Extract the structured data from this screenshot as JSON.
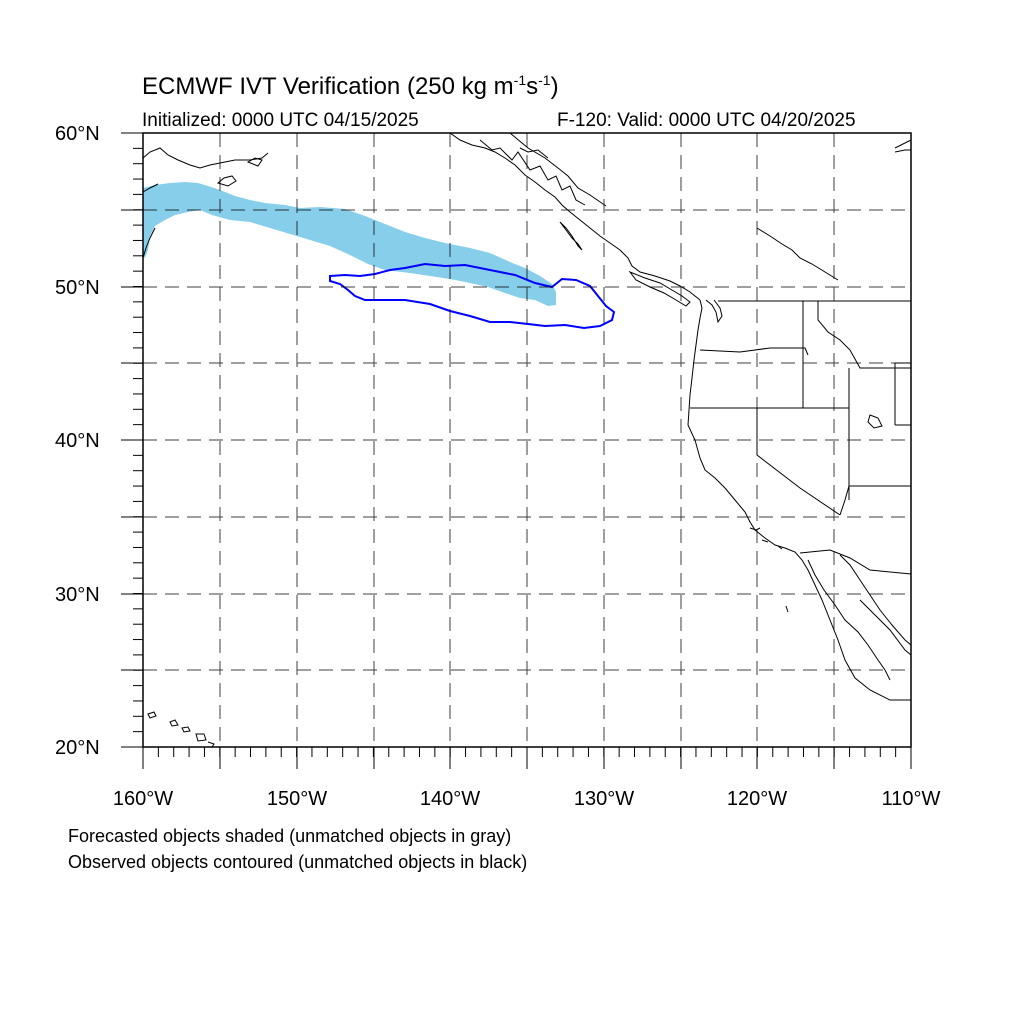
{
  "header": {
    "title_main": "ECMWF IVT Verification (250 kg m",
    "title_exp1": "-1",
    "title_mid": "s",
    "title_exp2": "-1",
    "title_end": ")",
    "initialized": "Initialized: 0000 UTC 04/15/2025",
    "valid": "F-120: Valid: 0000 UTC 04/20/2025"
  },
  "axes": {
    "lat_labels": [
      "60°N",
      "50°N",
      "40°N",
      "30°N",
      "20°N"
    ],
    "lon_labels": [
      "160°W",
      "150°W",
      "140°W",
      "130°W",
      "120°W",
      "110°W"
    ]
  },
  "captions": {
    "line1": "Forecasted objects shaded (unmatched objects in gray)",
    "line2": "Observed objects contoured (unmatched objects in black)"
  },
  "colors": {
    "forecast_fill": "#87ceeb",
    "observed_contour": "#0000ff",
    "coastline": "#000000",
    "grid": "#000000"
  }
}
